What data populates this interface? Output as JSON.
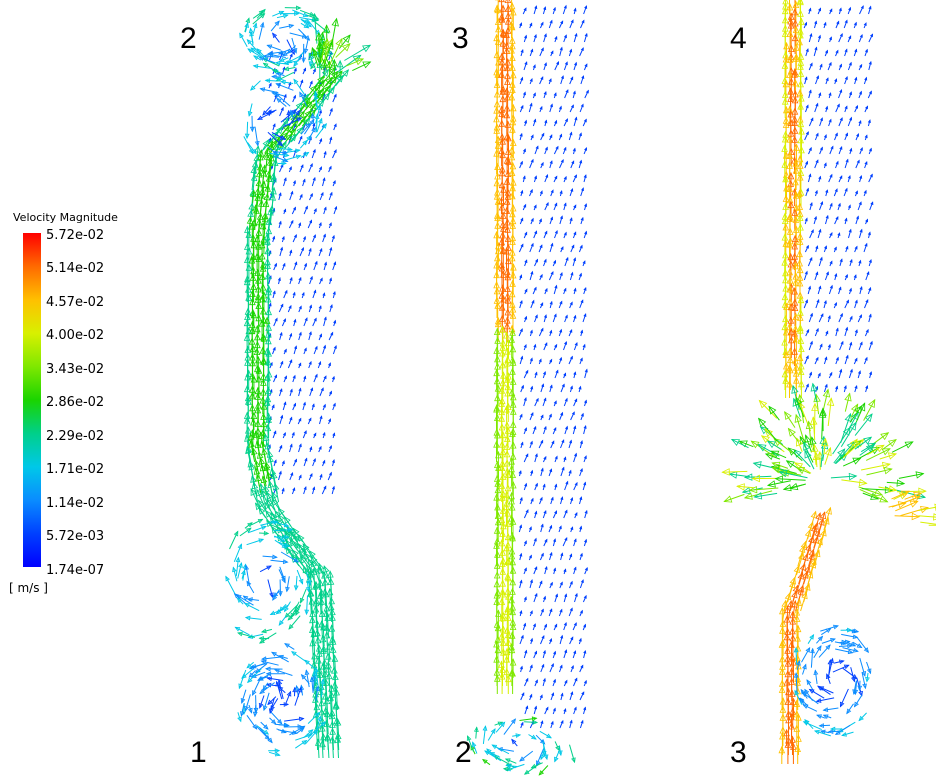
{
  "legend": {
    "title": "Velocity Magnitude",
    "unit": "[ m/s ]",
    "ticks": [
      "5.72e-02",
      "5.14e-02",
      "4.57e-02",
      "4.00e-02",
      "3.43e-02",
      "2.86e-02",
      "2.29e-02",
      "1.71e-02",
      "1.14e-02",
      "5.72e-03",
      "1.74e-07"
    ],
    "colors": [
      "#ff0000",
      "#ff6a00",
      "#ffc000",
      "#d8f000",
      "#7fe800",
      "#1ad400",
      "#00d08a",
      "#00c8e8",
      "#0a8cff",
      "#0040ff",
      "#0000ff"
    ]
  },
  "panels": [
    {
      "top_label": "2",
      "bottom_label": "1",
      "pattern": "wavy-jet"
    },
    {
      "top_label": "3",
      "bottom_label": "2",
      "pattern": "straight-jet"
    },
    {
      "top_label": "4",
      "bottom_label": "3",
      "pattern": "jet-with-breakout"
    }
  ]
}
